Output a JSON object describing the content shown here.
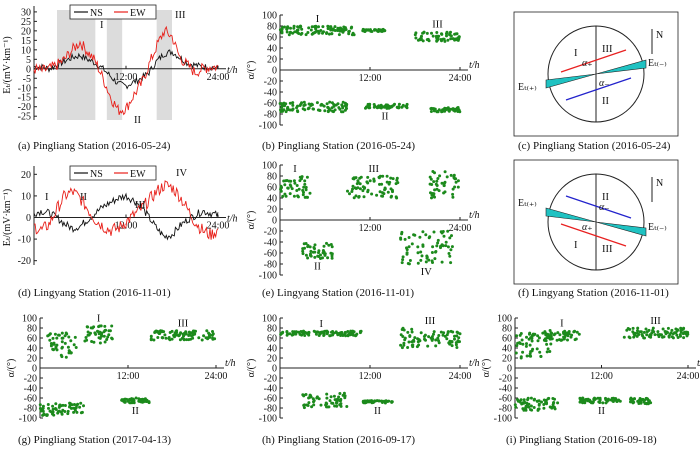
{
  "colors": {
    "ns": "#111111",
    "ew": "#e8201a",
    "green": "#1c8a1c",
    "shade": "#dcdcdc",
    "cyan": "#1fc2c2",
    "blue": "#2222cc",
    "red": "#e82020"
  },
  "legend": {
    "ns": "NS",
    "ew": "EW"
  },
  "axis_labels": {
    "e_unit": "Eₜ/(mV·km⁻¹)",
    "angle": "α/(°)",
    "time": "t/h"
  },
  "ticks": {
    "time": [
      "12:00",
      "24:00"
    ],
    "e_a": [
      "30",
      "25",
      "20",
      "15",
      "10",
      "5",
      "0",
      "-5",
      "-10",
      "-15",
      "-20",
      "-25"
    ],
    "e_d": [
      "20",
      "10",
      "0",
      "-10",
      "-20"
    ],
    "angle": [
      "100",
      "80",
      "60",
      "40",
      "20",
      "0",
      "-20",
      "-40",
      "-60",
      "-80",
      "-100"
    ]
  },
  "captions": {
    "a": "(a) Pingliang Station (2016-05-24)",
    "b": "(b) Pingliang Station (2016-05-24)",
    "c": "(c) Pingliang Station (2016-05-24)",
    "d": "(d) Lingyang Station (2016-11-01)",
    "e": "(e) Lingyang Station (2016-11-01)",
    "f": "(f) Lingyang Station (2016-11-01)",
    "g": "(g) Pingliang Station (2017-04-13)",
    "h": "(h) Pingliang Station (2016-09-17)",
    "i": "(i) Pingliang Station (2016-09-18)"
  },
  "roman": {
    "I": "I",
    "II": "II",
    "III": "III",
    "IV": "IV"
  },
  "diagram": {
    "north": "N",
    "c_labels": {
      "et_minus": "Eₜ₍₋₎",
      "et_plus": "Eₜ₍₊₎",
      "alpha_plus": "α₊",
      "alpha_minus": "α₋"
    },
    "f_labels": {
      "et_minus": "Eₜ₍₋₎",
      "et_plus": "Eₜ₍₊₎",
      "alpha_plus": "α₊",
      "alpha_minus": "α₋"
    }
  },
  "chart_data": [
    {
      "panel": "a",
      "type": "line",
      "xlabel": "t/h",
      "ylabel": "Eₜ/(mV·km⁻¹)",
      "xlim": [
        0,
        24
      ],
      "ylim": [
        -27,
        31
      ],
      "shaded_hours": [
        [
          3,
          8
        ],
        [
          9.5,
          11.5
        ],
        [
          16,
          18
        ]
      ],
      "series": [
        {
          "name": "NS",
          "x": [
            0,
            1,
            2,
            3,
            4,
            5,
            6,
            7,
            8,
            9,
            10,
            11,
            12,
            13,
            14,
            15,
            16,
            17,
            18,
            19,
            20,
            21,
            22,
            23,
            24
          ],
          "values": [
            1,
            1,
            0,
            2,
            4,
            6,
            7,
            5,
            3,
            0,
            -4,
            -8,
            -9,
            -7,
            -5,
            -2,
            4,
            8,
            9,
            6,
            3,
            2,
            1,
            1,
            0
          ]
        },
        {
          "name": "EW",
          "x": [
            0,
            1,
            2,
            3,
            4,
            5,
            6,
            7,
            8,
            9,
            10,
            11,
            12,
            13,
            14,
            15,
            16,
            17,
            18,
            19,
            20,
            21,
            22,
            23,
            24
          ],
          "values": [
            0,
            -1,
            0,
            2,
            5,
            10,
            14,
            9,
            4,
            -5,
            -15,
            -22,
            -21,
            -14,
            -8,
            2,
            12,
            20,
            17,
            6,
            2,
            -2,
            0,
            1,
            1
          ]
        }
      ]
    },
    {
      "panel": "b",
      "type": "scatter",
      "xlabel": "t/h",
      "ylabel": "α/(°)",
      "xlim": [
        0,
        24
      ],
      "ylim": [
        -100,
        100
      ],
      "clusters": [
        {
          "label": "I",
          "x": [
            0,
            10
          ],
          "y": [
            64,
            80
          ]
        },
        {
          "label": "",
          "x": [
            11,
            14
          ],
          "y": [
            70,
            74
          ]
        },
        {
          "label": "III",
          "x": [
            18,
            24
          ],
          "y": [
            52,
            70
          ]
        },
        {
          "label": "",
          "x": [
            0,
            9
          ],
          "y": [
            -76,
            -58
          ]
        },
        {
          "label": "II",
          "x": [
            11,
            17
          ],
          "y": [
            -70,
            -62
          ]
        },
        {
          "label": "",
          "x": [
            20,
            24
          ],
          "y": [
            -76,
            -68
          ]
        }
      ]
    },
    {
      "panel": "d",
      "type": "line",
      "xlabel": "t/h",
      "ylabel": "Eₜ/(mV·km⁻¹)",
      "xlim": [
        0,
        24
      ],
      "ylim": [
        -22,
        22
      ],
      "series": [
        {
          "name": "NS",
          "x": [
            0,
            1,
            2,
            3,
            4,
            5,
            6,
            7,
            8,
            9,
            10,
            11,
            12,
            13,
            14,
            15,
            16,
            17,
            18,
            19,
            20,
            21,
            22,
            23,
            24
          ],
          "values": [
            2,
            3,
            2,
            0,
            -3,
            -5,
            -4,
            -1,
            2,
            5,
            7,
            9,
            10,
            8,
            5,
            0,
            -5,
            -9,
            -8,
            -4,
            -1,
            1,
            3,
            2,
            1
          ]
        },
        {
          "name": "EW",
          "x": [
            0,
            1,
            2,
            3,
            4,
            5,
            6,
            7,
            8,
            9,
            10,
            11,
            12,
            13,
            14,
            15,
            16,
            17,
            18,
            19,
            20,
            21,
            22,
            23,
            24
          ],
          "values": [
            -4,
            -6,
            -3,
            4,
            10,
            12,
            9,
            4,
            -1,
            -4,
            -6,
            -5,
            -2,
            1,
            4,
            8,
            12,
            15,
            14,
            10,
            4,
            -2,
            -6,
            -8,
            -6
          ]
        }
      ]
    },
    {
      "panel": "e",
      "type": "scatter",
      "xlabel": "t/h",
      "ylabel": "α/(°)",
      "xlim": [
        0,
        24
      ],
      "ylim": [
        -100,
        100
      ],
      "clusters": [
        {
          "label": "I",
          "x": [
            0,
            4
          ],
          "y": [
            40,
            80
          ]
        },
        {
          "label": "III",
          "x": [
            9,
            16
          ],
          "y": [
            40,
            80
          ]
        },
        {
          "label": "",
          "x": [
            20,
            24
          ],
          "y": [
            40,
            90
          ]
        },
        {
          "label": "II",
          "x": [
            3,
            7
          ],
          "y": [
            -70,
            -40
          ]
        },
        {
          "label": "IV",
          "x": [
            16,
            23
          ],
          "y": [
            -80,
            -20
          ]
        }
      ]
    },
    {
      "panel": "g",
      "type": "scatter",
      "xlabel": "t/h",
      "ylabel": "α/(°)",
      "xlim": [
        0,
        24
      ],
      "ylim": [
        -100,
        100
      ],
      "clusters": [
        {
          "label": "",
          "x": [
            1,
            5
          ],
          "y": [
            20,
            70
          ]
        },
        {
          "label": "I",
          "x": [
            6,
            10
          ],
          "y": [
            50,
            85
          ]
        },
        {
          "label": "III",
          "x": [
            15,
            24
          ],
          "y": [
            55,
            75
          ]
        },
        {
          "label": "",
          "x": [
            0,
            6
          ],
          "y": [
            -95,
            -70
          ]
        },
        {
          "label": "II",
          "x": [
            11,
            15
          ],
          "y": [
            -70,
            -60
          ]
        }
      ]
    },
    {
      "panel": "h",
      "type": "scatter",
      "xlabel": "t/h",
      "ylabel": "α/(°)",
      "xlim": [
        0,
        24
      ],
      "ylim": [
        -100,
        100
      ],
      "clusters": [
        {
          "label": "I",
          "x": [
            0,
            11
          ],
          "y": [
            64,
            74
          ]
        },
        {
          "label": "III",
          "x": [
            16,
            24
          ],
          "y": [
            40,
            80
          ]
        },
        {
          "label": "",
          "x": [
            3,
            9
          ],
          "y": [
            -80,
            -50
          ]
        },
        {
          "label": "II",
          "x": [
            11,
            15
          ],
          "y": [
            -70,
            -65
          ]
        }
      ]
    },
    {
      "panel": "i",
      "type": "scatter",
      "xlabel": "t/h",
      "ylabel": "α/(°)",
      "xlim": [
        0,
        24
      ],
      "ylim": [
        -100,
        100
      ],
      "clusters": [
        {
          "label": "",
          "x": [
            0,
            5
          ],
          "y": [
            20,
            70
          ]
        },
        {
          "label": "I",
          "x": [
            4,
            9
          ],
          "y": [
            55,
            75
          ]
        },
        {
          "label": "III",
          "x": [
            15,
            24
          ],
          "y": [
            60,
            80
          ]
        },
        {
          "label": "",
          "x": [
            0,
            6
          ],
          "y": [
            -85,
            -60
          ]
        },
        {
          "label": "II",
          "x": [
            9,
            15
          ],
          "y": [
            -70,
            -60
          ]
        },
        {
          "label": "",
          "x": [
            16,
            19
          ],
          "y": [
            -72,
            -60
          ]
        }
      ]
    }
  ]
}
